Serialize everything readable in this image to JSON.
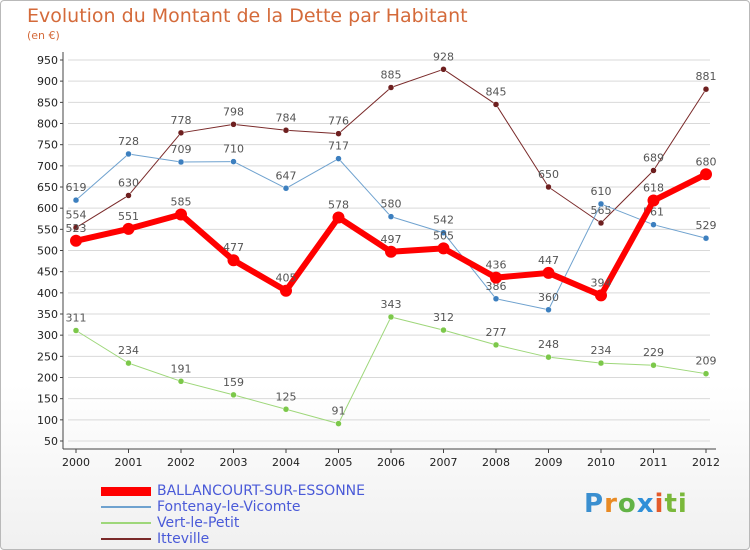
{
  "title": "Evolution du Montant de la Dette par Habitant",
  "unit": "(en €)",
  "logo": {
    "text": "Proxiti",
    "letters": [
      "P",
      "r",
      "o",
      "x",
      "i",
      "ti"
    ]
  },
  "chart_data": {
    "type": "line",
    "title": "Evolution du Montant de la Dette par Habitant",
    "ylabel": "(en €)",
    "xlabel": "",
    "ylim": [
      50,
      950
    ],
    "yticks": [
      50,
      100,
      150,
      200,
      250,
      300,
      350,
      400,
      450,
      500,
      550,
      600,
      650,
      700,
      750,
      800,
      850,
      900,
      950
    ],
    "categories": [
      "2000",
      "2001",
      "2002",
      "2003",
      "2004",
      "2005",
      "2006",
      "2007",
      "2008",
      "2009",
      "2010",
      "2011",
      "2012"
    ],
    "legend_position": "bottom-left",
    "series": [
      {
        "name": "Itteville",
        "color": "#7a2a2a",
        "point_color": "#6e1f1f",
        "width": 1,
        "values": [
          554,
          630,
          778,
          798,
          784,
          776,
          885,
          928,
          845,
          650,
          565,
          689,
          881
        ],
        "labels": [
          "554",
          "630",
          "778",
          "798",
          "784",
          "776",
          "885",
          "928",
          "845",
          "650",
          "565",
          "689",
          "881"
        ]
      },
      {
        "name": "Fontenay-le-Vicomte",
        "color": "#6fa2cf",
        "point_color": "#3c7fbf",
        "width": 1,
        "values": [
          619,
          728,
          709,
          710,
          647,
          717,
          580,
          542,
          386,
          360,
          610,
          561,
          529
        ],
        "labels": [
          "619",
          "728",
          "709",
          "710",
          "647",
          "717",
          "580",
          "542",
          "386",
          "360",
          "610",
          "561",
          "529"
        ]
      },
      {
        "name": "Vert-le-Petit",
        "color": "#9ed77a",
        "point_color": "#7cc84a",
        "width": 1,
        "values": [
          311,
          234,
          191,
          159,
          125,
          91,
          343,
          312,
          277,
          248,
          234,
          229,
          209
        ],
        "labels": [
          "311",
          "234",
          "191",
          "159",
          "125",
          "91",
          "343",
          "312",
          "277",
          "248",
          "234",
          "229",
          "209"
        ]
      },
      {
        "name": "BALLANCOURT-SUR-ESSONNE",
        "color": "#ff0000",
        "point_color": "#ff0000",
        "width": 6,
        "values": [
          523,
          551,
          585,
          477,
          405,
          578,
          497,
          505,
          436,
          447,
          394,
          618,
          680
        ],
        "labels": [
          "523",
          "551",
          "585",
          "477",
          "405",
          "578",
          "497",
          "505",
          "436",
          "447",
          "394",
          "618",
          "680"
        ]
      }
    ],
    "legend_order": [
      "BALLANCOURT-SUR-ESSONNE",
      "Fontenay-le-Vicomte",
      "Vert-le-Petit",
      "Itteville"
    ]
  }
}
